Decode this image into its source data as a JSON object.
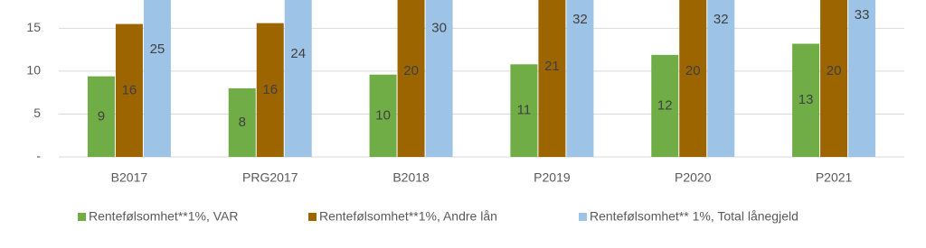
{
  "chart_data": {
    "type": "bar",
    "categories": [
      "B2017",
      "PRG2017",
      "B2018",
      "P2019",
      "P2020",
      "P2021"
    ],
    "series": [
      {
        "name": "Rentefølsomhet**1%, VAR",
        "color": "#70ad47",
        "values": [
          9.4,
          8,
          9.6,
          10.8,
          11.9,
          13.2
        ],
        "value_labels": [
          "9",
          "8",
          "10",
          "11",
          "12",
          "13"
        ]
      },
      {
        "name": "Rentefølsomhet**1%, Andre lån",
        "color": "#9c6500",
        "values": [
          15.5,
          15.6,
          20,
          21,
          20,
          20
        ],
        "value_labels": [
          "16",
          "16",
          "20",
          "21",
          "20",
          "20"
        ]
      },
      {
        "name": "Rentefølsomhet** 1%, Total lånegjeld",
        "color": "#9dc3e6",
        "values": [
          25,
          24,
          30,
          32,
          32,
          33
        ]
      }
    ],
    "ylim": [
      0,
      18.3
    ],
    "yticks": [
      {
        "value": 0,
        "label": "-"
      },
      5,
      10,
      15
    ],
    "grid": true,
    "legend": "bottom"
  }
}
